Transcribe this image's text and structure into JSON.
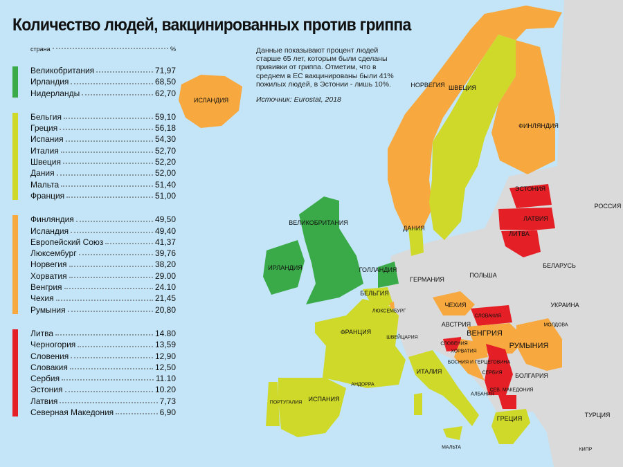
{
  "title": "Количество людей, вакцинированных против гриппа",
  "legend": {
    "header_country": "страна",
    "header_unit": "%",
    "groups": [
      {
        "color": "#3aaa49",
        "rows": [
          [
            "Великобритания",
            "71,97"
          ],
          [
            "Ирландия",
            "68,50"
          ],
          [
            "Нидерланды",
            "62,70"
          ]
        ]
      },
      {
        "color": "#cfd92a",
        "rows": [
          [
            "Бельгия",
            "59,10"
          ],
          [
            "Греция",
            "56,18"
          ],
          [
            "Испания",
            "54,30"
          ],
          [
            "Италия",
            "52,70"
          ],
          [
            "Швеция",
            "52,20"
          ],
          [
            "Дания",
            "52,00"
          ],
          [
            "Мальта",
            "51,40"
          ],
          [
            "Франция",
            "51,00"
          ]
        ]
      },
      {
        "color": "#f7a83e",
        "rows": [
          [
            "Финляндия",
            "49,50"
          ],
          [
            "Исландия",
            "49,40"
          ],
          [
            "Европейский Союз",
            "41,37"
          ],
          [
            "Люксембург",
            "39,76"
          ],
          [
            "Норвегия",
            "38,20"
          ],
          [
            "Хорватия",
            "29.00"
          ],
          [
            "Венгрия",
            "24.10"
          ],
          [
            "Чехия",
            "21,45"
          ],
          [
            "Румыния",
            "20,80"
          ]
        ]
      },
      {
        "color": "#e42026",
        "rows": [
          [
            "Литва",
            "14.80"
          ],
          [
            "Черногория",
            "13,59"
          ],
          [
            "Словения",
            "12,90"
          ],
          [
            "Словакия",
            "12,50"
          ],
          [
            "Сербия",
            "11.10"
          ],
          [
            "Эстония",
            "10.20"
          ],
          [
            "Латвия",
            "7,73"
          ],
          [
            "Северная Македония",
            "6,90"
          ]
        ]
      }
    ]
  },
  "note": {
    "text": "Данные показывают процент людей старше 65 лет, которым были сделаны прививки от гриппа. Отметим, что в среднем в ЕС вакцинированы были 41% пожилых людей, в Эстонии - лишь 10%.",
    "source": "Источник: Eurostat, 2018"
  },
  "colors": {
    "sea": "#c3e5f7",
    "no_data": "#dadada",
    "green": "#3aaa49",
    "yellow": "#cfd92a",
    "orange": "#f7a83e",
    "red": "#e42026"
  },
  "map": {
    "labels": [
      "ИСЛАНДИЯ",
      "НОРВЕГИЯ",
      "ШВЕЦИЯ",
      "ФИНЛЯНДИЯ",
      "РОССИЯ",
      "ЭСТОНИЯ",
      "ЛАТВИЯ",
      "ЛИТВА",
      "ВЕЛИКОБРИТАНИЯ",
      "ДАНИЯ",
      "ИРЛАНДИЯ",
      "ГОЛЛАНДИЯ",
      "ГЕРМАНИЯ",
      "ПОЛЬША",
      "БЕЛАРУСЬ",
      "БЕЛЬГИЯ",
      "ЛЮКСЕМБУРГ",
      "ЧЕХИЯ",
      "УКРАИНА",
      "СЛОВАКИЯ",
      "ФРАНЦИЯ",
      "АВСТРИЯ",
      "МОЛДОВА",
      "ВЕНГРИЯ",
      "ШВЕЙЦАРИЯ",
      "СЛОВЕНИЯ",
      "РУМЫНИЯ",
      "ХОРВАТИЯ",
      "БОСНИЯ И ГЕРЦЕГОВИНА",
      "СЕРБИЯ",
      "ИТАЛИЯ",
      "БОЛГАРИЯ",
      "АНДОРРА",
      "СЕВ. МАКЕДОНИЯ",
      "АЛБАНИЯ",
      "ПОРТУГАЛИЯ",
      "ИСПАНИЯ",
      "ГРЕЦИЯ",
      "ТУРЦИЯ",
      "МАЛЬТА",
      "КИПР"
    ]
  }
}
